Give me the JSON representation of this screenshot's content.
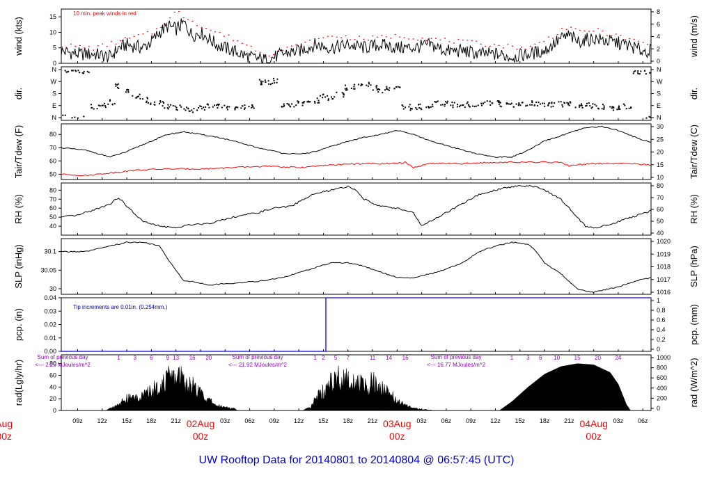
{
  "title": "UW Rooftop Data for 20140801  to  20140804 @ 06:57:45  (UTC)",
  "colors": {
    "trace": "#000000",
    "peak": "#ff0000",
    "dewpoint": "#ff0000",
    "precip": "#0000ff",
    "note_red": "#ff0000",
    "note_blue": "#0000aa",
    "note_purple": "#9900cc",
    "title": "#0000cc",
    "date_labels": "#ff0000"
  },
  "x_axis": {
    "hour_ticks": [
      "09z",
      "12z",
      "15z",
      "18z",
      "21z",
      "03z",
      "06z",
      "09z",
      "12z",
      "15z",
      "18z",
      "21z",
      "03z",
      "06z",
      "09z",
      "12z",
      "15z",
      "18z",
      "21z",
      "03z",
      "06z"
    ],
    "dates": [
      {
        "top": "Aug",
        "bottom": "00z"
      },
      {
        "top": "02Aug",
        "bottom": "00z"
      },
      {
        "top": "03Aug",
        "bottom": "00z"
      },
      {
        "top": "04Aug",
        "bottom": "00z"
      }
    ],
    "range_hours": [
      7,
      79
    ]
  },
  "chart_data": [
    {
      "panel": "wind",
      "type": "line",
      "ylabel": "wind (kts)",
      "ylabel_right": "wind (m/s)",
      "ylim": [
        0,
        17.5
      ],
      "yticks": [
        0,
        5,
        10,
        15
      ],
      "yticks_right": [
        "0",
        "2",
        "4",
        "6",
        "8"
      ],
      "annotation": "10 min. peak winds in red",
      "series": [
        {
          "name": "",
          "x": [
            7,
            9,
            11,
            13,
            14,
            15,
            17,
            18,
            19,
            20,
            21,
            22,
            23,
            24,
            25,
            26,
            27,
            28,
            30,
            32,
            34,
            36,
            38,
            40,
            42,
            44,
            46,
            48,
            50,
            52,
            54,
            56,
            58,
            60,
            62,
            64,
            66,
            67,
            68,
            69,
            70,
            72,
            74,
            76,
            78,
            79
          ],
          "values": [
            4,
            3,
            3,
            2,
            5,
            6,
            5,
            7,
            10,
            12,
            11,
            13,
            9,
            10,
            8,
            6,
            5,
            4,
            2,
            1,
            3,
            4,
            6,
            5,
            6,
            5,
            6,
            5,
            5,
            6,
            4,
            4,
            3,
            3,
            2,
            3,
            4,
            6,
            8,
            9,
            7,
            8,
            7,
            6,
            4,
            4
          ]
        },
        {
          "name": "",
          "x": [
            7,
            11,
            15,
            18,
            20,
            21,
            22,
            23,
            24,
            28,
            32,
            36,
            40,
            44,
            48,
            52,
            56,
            60,
            64,
            67,
            68,
            69,
            70,
            72,
            76,
            79
          ],
          "values": [
            6,
            5,
            8,
            10,
            14,
            17,
            15,
            14,
            12,
            8,
            3,
            6,
            9,
            8,
            9,
            8,
            7,
            6,
            5,
            9,
            11,
            12,
            10,
            11,
            8,
            6
          ]
        }
      ]
    },
    {
      "panel": "dir",
      "type": "scatter",
      "ylabel": "dir.",
      "ylabel_right": "dir.",
      "categories": [
        "N",
        "W",
        "S",
        "E",
        "N"
      ],
      "x": [
        7,
        8,
        9,
        10,
        11,
        12,
        13,
        14,
        15,
        16,
        17,
        18,
        19,
        20,
        21,
        22,
        23,
        24,
        25,
        26,
        27,
        28,
        29,
        30,
        31,
        32,
        33,
        34,
        35,
        36,
        37,
        38,
        39,
        40,
        41,
        42,
        43,
        44,
        45,
        46,
        47,
        48,
        49,
        50,
        51,
        52,
        53,
        54,
        55,
        56,
        57,
        58,
        59,
        60,
        61,
        62,
        63,
        64,
        65,
        66,
        67,
        68,
        69,
        70,
        71,
        72,
        73,
        74,
        75,
        76,
        77,
        78,
        79
      ],
      "values": [
        350,
        355,
        0,
        5,
        270,
        260,
        240,
        120,
        150,
        200,
        225,
        240,
        250,
        270,
        280,
        290,
        300,
        280,
        270,
        270,
        280,
        285,
        280,
        275,
        90,
        85,
        80,
        270,
        260,
        250,
        240,
        230,
        200,
        210,
        180,
        130,
        120,
        110,
        130,
        150,
        140,
        120,
        270,
        280,
        275,
        270,
        250,
        250,
        260,
        260,
        255,
        250,
        250,
        250,
        255,
        260,
        260,
        250,
        255,
        260,
        260,
        255,
        250,
        260,
        265,
        270,
        275,
        280,
        275,
        270,
        20,
        10,
        5
      ]
    },
    {
      "panel": "temp",
      "type": "line",
      "ylabel": "Tair/Tdew (F)",
      "ylabel_right": "Tair/Tdew (C)",
      "ylim": [
        46,
        88
      ],
      "yticks": [
        50,
        60,
        70,
        80
      ],
      "yticks_right": [
        "10",
        "15",
        "20",
        "25",
        "30"
      ],
      "series": [
        {
          "name": "",
          "x": [
            7,
            10,
            13,
            15,
            18,
            20,
            22,
            24,
            26,
            28,
            31,
            34,
            36,
            38,
            41,
            44,
            46,
            48,
            50,
            52,
            55,
            58,
            60,
            62,
            64,
            66,
            69,
            71,
            73,
            75,
            77,
            79
          ],
          "values": [
            70,
            68,
            63,
            67,
            75,
            80,
            82,
            80,
            78,
            75,
            70,
            66,
            65,
            67,
            73,
            78,
            80,
            83,
            80,
            75,
            70,
            65,
            63,
            63,
            68,
            75,
            81,
            85,
            86,
            83,
            78,
            74
          ]
        },
        {
          "name": "",
          "x": [
            7,
            10,
            13,
            16,
            20,
            24,
            28,
            32,
            36,
            40,
            44,
            48,
            49,
            50,
            52,
            56,
            60,
            64,
            68,
            69,
            70,
            72,
            76,
            79
          ],
          "values": [
            50,
            49,
            51,
            53,
            54,
            54,
            55,
            56,
            55,
            57,
            58,
            58,
            59,
            55,
            58,
            58,
            59,
            59,
            59,
            56,
            57,
            58,
            58,
            57
          ]
        }
      ]
    },
    {
      "panel": "rh",
      "type": "line",
      "ylabel": "RH (%)",
      "ylabel_right": "RH (%)",
      "ylim": [
        30,
        88
      ],
      "yticks": [
        40,
        50,
        60,
        70,
        80
      ],
      "yticks_right": [
        "40",
        "50",
        "60",
        "70",
        "80"
      ],
      "series": [
        {
          "name": "",
          "x": [
            7,
            9,
            11,
            13,
            14,
            15,
            17,
            19,
            21,
            23,
            25,
            27,
            29,
            31,
            33,
            35,
            37,
            38,
            40,
            42,
            43,
            44,
            46,
            48,
            50,
            51,
            52,
            54,
            56,
            58,
            60,
            62,
            63,
            65,
            66,
            68,
            70,
            71,
            72,
            74,
            76,
            79
          ],
          "values": [
            50,
            52,
            58,
            65,
            72,
            62,
            45,
            40,
            38,
            42,
            43,
            48,
            52,
            55,
            60,
            62,
            72,
            76,
            80,
            84,
            80,
            70,
            62,
            60,
            55,
            40,
            45,
            55,
            65,
            75,
            80,
            84,
            85,
            84,
            80,
            70,
            50,
            40,
            38,
            42,
            48,
            57
          ]
        }
      ]
    },
    {
      "panel": "slp",
      "type": "line",
      "ylabel": "SLP (inHg)",
      "ylabel_right": "SLP (hPa)",
      "ylim": [
        29.985,
        30.135
      ],
      "yticks": [
        30.0,
        30.05,
        30.1
      ],
      "yticks_right": [
        "1016",
        "1017",
        "1018",
        "1019",
        "1020"
      ],
      "series": [
        {
          "name": "",
          "x": [
            7,
            10,
            13,
            15,
            17,
            19,
            20,
            21,
            22,
            23,
            25,
            28,
            31,
            34,
            37,
            40,
            42,
            44,
            46,
            48,
            50,
            53,
            56,
            58,
            60,
            62,
            64,
            65,
            66,
            68,
            70,
            72,
            73,
            75,
            77,
            79
          ],
          "values": [
            30.1,
            30.1,
            30.115,
            30.125,
            30.125,
            30.115,
            30.08,
            30.05,
            30.02,
            30.02,
            30.01,
            30.015,
            30.02,
            30.03,
            30.05,
            30.07,
            30.07,
            30.06,
            30.045,
            30.03,
            30.03,
            30.045,
            30.07,
            30.1,
            30.115,
            30.125,
            30.12,
            30.1,
            30.07,
            30.04,
            30.0,
            29.99,
            29.995,
            30.005,
            30.02,
            30.03
          ]
        }
      ]
    },
    {
      "panel": "pcp",
      "type": "line",
      "ylabel": "pcp. (in)",
      "ylabel_right": "pcp. (mm)",
      "ylim": [
        0,
        0.04
      ],
      "yticks": [
        0,
        0.01,
        0.02,
        0.03,
        0.04
      ],
      "ytick_labels": [
        "0.00",
        "0.01",
        "0.02",
        "0.03",
        "0.04"
      ],
      "yticks_right": [
        "0",
        "0.2",
        "0.4",
        "0.6",
        "0.8",
        "1"
      ],
      "annotation": "Tip increments are 0.01in. (0.254mm.)",
      "series": [
        {
          "name": "",
          "x": [
            7,
            39.3,
            39.3,
            79
          ],
          "values": [
            0,
            0,
            0.04,
            0.04
          ]
        }
      ]
    },
    {
      "panel": "rad",
      "type": "area",
      "ylabel": "rad(Lgly/hr)",
      "ylabel_right": "rad (W/m^2)",
      "ylim": [
        0,
        95
      ],
      "yticks": [
        0,
        20,
        40,
        60,
        80
      ],
      "yticks_right": [
        "0",
        "200",
        "400",
        "600",
        "800",
        "1000"
      ],
      "day_labels": [
        {
          "line1": "Sum of previous day",
          "line2": "<--- 2.25 MJoules/m^2"
        },
        {
          "line1": "Sum of previous day",
          "line2": "<--- 21.92 MJoules/m^2"
        },
        {
          "line1": "Sum of previous day",
          "line2": "<--- 16.77 MJoules/m^2"
        }
      ],
      "hour_marks": [
        {
          "start": 13.5,
          "labels": [
            "1",
            "3",
            "6",
            "9",
            "13",
            "16",
            "20"
          ],
          "hours": [
            14,
            16,
            18,
            20,
            21,
            23,
            25
          ]
        },
        {
          "start": 37.5,
          "labels": [
            "1",
            "2",
            "5",
            "7",
            "11",
            "14",
            "16"
          ],
          "hours": [
            38,
            39,
            40.5,
            42,
            45,
            47,
            49
          ]
        },
        {
          "start": 61.5,
          "labels": [
            "1",
            "3",
            "6",
            "10",
            "15",
            "20",
            "24"
          ],
          "hours": [
            62,
            64,
            65.5,
            67.5,
            70,
            72.5,
            75
          ]
        }
      ],
      "series": [
        {
          "name": "",
          "x": [
            12.5,
            13.5,
            15,
            17,
            18,
            19,
            20,
            20.5,
            21,
            21.5,
            22,
            23,
            24,
            25,
            26,
            27,
            28,
            28.5,
            36.5,
            37.5,
            38,
            39,
            40,
            41,
            42,
            43,
            44,
            45,
            46,
            47,
            48,
            49,
            50,
            51,
            52,
            52.5,
            60.5,
            62,
            64,
            66,
            68,
            70,
            72,
            74,
            75,
            76,
            76.5
          ],
          "values": [
            0,
            10,
            28,
            35,
            48,
            60,
            75,
            85,
            75,
            90,
            70,
            60,
            42,
            25,
            12,
            8,
            5,
            0,
            0,
            8,
            30,
            45,
            70,
            80,
            85,
            65,
            60,
            70,
            55,
            40,
            25,
            12,
            6,
            3,
            1,
            0,
            0,
            15,
            40,
            62,
            75,
            80,
            78,
            65,
            45,
            10,
            0
          ]
        }
      ]
    }
  ]
}
